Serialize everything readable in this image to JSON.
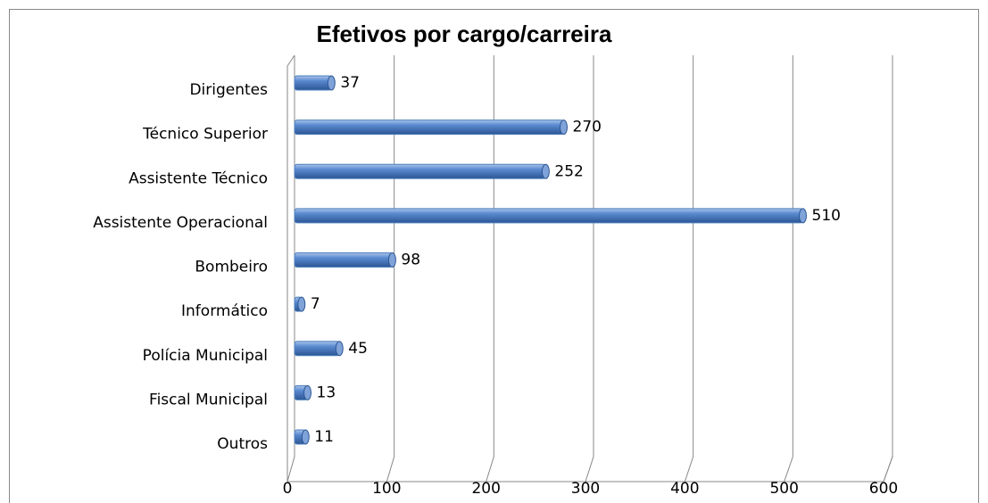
{
  "chart_data": {
    "type": "bar",
    "orientation": "horizontal",
    "title": "Efetivos por cargo/carreira",
    "categories": [
      "Dirigentes",
      "Técnico Superior",
      "Assistente Técnico",
      "Assistente Operacional",
      "Bombeiro",
      "Informático",
      "Polícia Municipal",
      "Fiscal Municipal",
      "Outros"
    ],
    "values": [
      37,
      270,
      252,
      510,
      98,
      7,
      45,
      13,
      11
    ],
    "color": "#4f81bd",
    "xlim": [
      0,
      600
    ],
    "xticks": [
      0,
      100,
      200,
      300,
      400,
      500,
      600
    ],
    "grid": true
  }
}
